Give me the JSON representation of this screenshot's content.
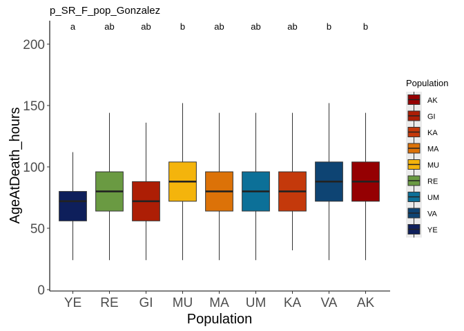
{
  "chart_data": {
    "type": "box",
    "title": "p_SR_F_pop_Gonzalez",
    "xlabel": "Population",
    "ylabel": "AgeAtDeath_hours",
    "ylim": [
      0,
      217
    ],
    "yticks": [
      0,
      50,
      100,
      150,
      200
    ],
    "grid": false,
    "legend_placement": "right",
    "legend_title": "Population",
    "categories": [
      "YE",
      "RE",
      "GI",
      "MU",
      "MA",
      "UM",
      "KA",
      "VA",
      "AK"
    ],
    "colors": [
      "#0e1f5b",
      "#6a9a42",
      "#ad1e05",
      "#f4b40c",
      "#dc7208",
      "#0c7098",
      "#c4390b",
      "#0e4473",
      "#950002"
    ],
    "letters": [
      "a",
      "ab",
      "ab",
      "b",
      "ab",
      "ab",
      "ab",
      "b",
      "b"
    ],
    "boxes": [
      {
        "min": 24,
        "q1": 56,
        "median": 72,
        "q3": 80,
        "max": 112
      },
      {
        "min": 24,
        "q1": 64,
        "median": 80,
        "q3": 96,
        "max": 144
      },
      {
        "min": 24,
        "q1": 56,
        "median": 72,
        "q3": 88,
        "max": 136
      },
      {
        "min": 24,
        "q1": 72,
        "median": 88,
        "q3": 104,
        "max": 152
      },
      {
        "min": 24,
        "q1": 64,
        "median": 80,
        "q3": 96,
        "max": 144
      },
      {
        "min": 24,
        "q1": 64,
        "median": 80,
        "q3": 96,
        "max": 144
      },
      {
        "min": 32,
        "q1": 64,
        "median": 80,
        "q3": 96,
        "max": 144
      },
      {
        "min": 24,
        "q1": 72,
        "median": 88,
        "q3": 104,
        "max": 152
      },
      {
        "min": 24,
        "q1": 72,
        "median": 88,
        "q3": 104,
        "max": 144
      }
    ],
    "legend": [
      {
        "label": "AK",
        "color": "#950002"
      },
      {
        "label": "GI",
        "color": "#ad1e05"
      },
      {
        "label": "KA",
        "color": "#c4390b"
      },
      {
        "label": "MA",
        "color": "#dc7208"
      },
      {
        "label": "MU",
        "color": "#f4b40c"
      },
      {
        "label": "RE",
        "color": "#6a9a42"
      },
      {
        "label": "UM",
        "color": "#0c7098"
      },
      {
        "label": "VA",
        "color": "#0e4473"
      },
      {
        "label": "YE",
        "color": "#0e1f5b"
      }
    ]
  }
}
